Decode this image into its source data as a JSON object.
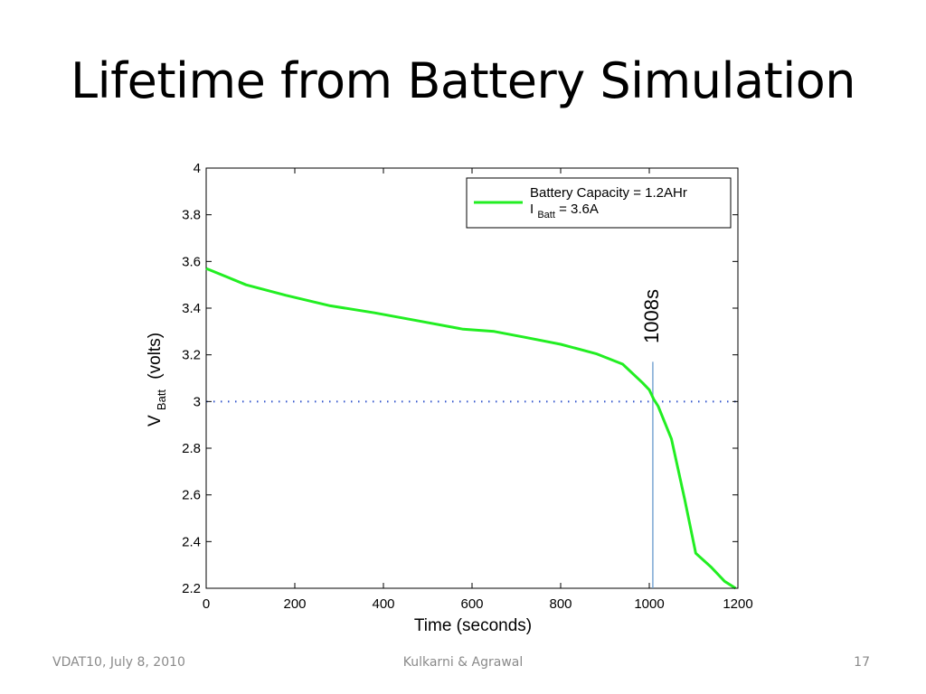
{
  "slide": {
    "title": "Lifetime from Battery Simulation",
    "footer_left": "VDAT10, July 8, 2010",
    "footer_center": "Kulkarni & Agrawal",
    "footer_right": "17"
  },
  "chart_data": {
    "type": "line",
    "xlabel": "Time (seconds)",
    "ylabel_main": "V",
    "ylabel_sub": "Batt",
    "ylabel_unit": "(volts)",
    "xlim": [
      0,
      1200
    ],
    "ylim": [
      2.2,
      4
    ],
    "xticks": [
      0,
      200,
      400,
      600,
      800,
      1000,
      1200
    ],
    "yticks": [
      2.2,
      2.4,
      2.6,
      2.8,
      3,
      3.2,
      3.4,
      3.6,
      3.8,
      4
    ],
    "ytick_labels": [
      "2.2",
      "2.4",
      "2.6",
      "2.8",
      "3",
      "3.2",
      "3.4",
      "3.6",
      "3.8",
      "4"
    ],
    "grid": false,
    "legend_position": "top-right",
    "legend": {
      "line1": "Battery Capacity = 1.2AHr",
      "line2_main": "I",
      "line2_sub": "Batt",
      "line2_rest": "= 3.6A"
    },
    "series": [
      {
        "color": "#22ee22",
        "x": [
          0,
          90,
          180,
          280,
          380,
          480,
          580,
          650,
          720,
          800,
          880,
          940,
          985,
          1000,
          1010,
          1020,
          1050,
          1080,
          1105,
          1140,
          1170,
          1195
        ],
        "y": [
          3.57,
          3.5,
          3.455,
          3.41,
          3.38,
          3.345,
          3.31,
          3.3,
          3.275,
          3.245,
          3.205,
          3.16,
          3.08,
          3.05,
          3.01,
          2.98,
          2.84,
          2.58,
          2.35,
          2.29,
          2.23,
          2.2
        ]
      }
    ],
    "threshold": {
      "y": 3.0,
      "color": "#3355cc"
    },
    "marker": {
      "x": 1008,
      "label": "1008s",
      "color": "#6699cc",
      "y_top": 3.17
    }
  }
}
